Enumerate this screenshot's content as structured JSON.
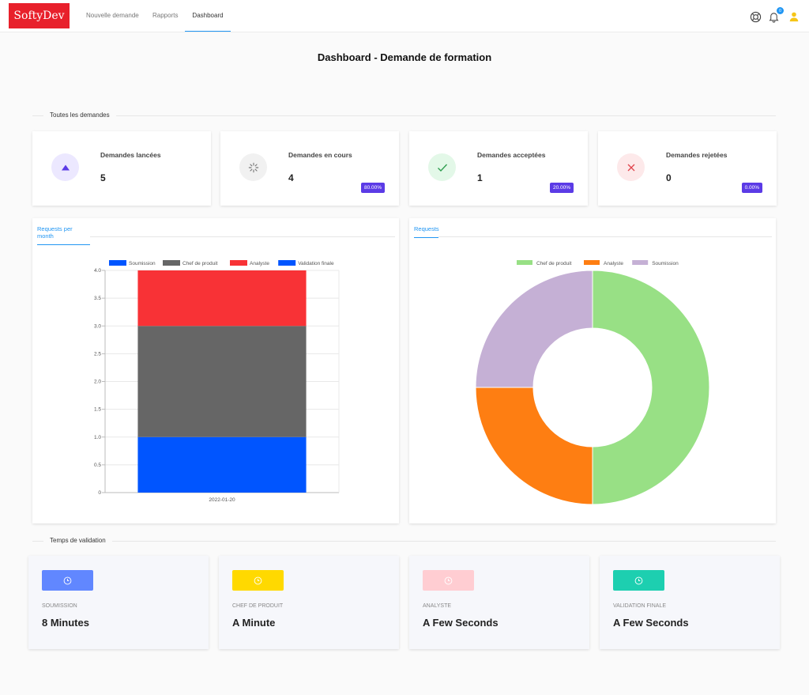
{
  "brand": "SoftyDev",
  "nav": {
    "items": [
      {
        "label": "Nouvelle demande",
        "active": false
      },
      {
        "label": "Rapports",
        "active": false
      },
      {
        "label": "Dashboard",
        "active": true
      }
    ]
  },
  "header_icons": {
    "help": "lifebuoy-icon",
    "notifications": "bell-icon",
    "notifications_count": "0",
    "user": "user-icon"
  },
  "page_title": "Dashboard - Demande de formation",
  "section_all": "Toutes les demandes",
  "stats": [
    {
      "title": "Demandes lancées",
      "value": "5",
      "pct": "",
      "icon": "triangle-up-icon",
      "color": "#5b3be6",
      "bg": "#ece8ff"
    },
    {
      "title": "Demandes en cours",
      "value": "4",
      "pct": "80.00%",
      "icon": "spinner-icon",
      "color": "#777777",
      "bg": "#f1f1f1"
    },
    {
      "title": "Demandes acceptées",
      "value": "1",
      "pct": "20.00%",
      "icon": "check-icon",
      "color": "#2f9e4f",
      "bg": "#e3f8e8"
    },
    {
      "title": "Demandes rejetées",
      "value": "0",
      "pct": "0.00%",
      "icon": "close-icon",
      "color": "#e0444c",
      "bg": "#fde9ea"
    }
  ],
  "bar_tab": "Requests per month",
  "donut_tab": "Requests",
  "chart_data": [
    {
      "type": "bar",
      "stacked": true,
      "categories": [
        "2022-01-20"
      ],
      "series": [
        {
          "name": "Soumission",
          "values": [
            1
          ],
          "color": "#0055ff"
        },
        {
          "name": "Chef de produit",
          "values": [
            2
          ],
          "color": "#666666"
        },
        {
          "name": "Analyste",
          "values": [
            1
          ],
          "color": "#f83236"
        },
        {
          "name": "Validation finale",
          "values": [
            0
          ],
          "color": "#0055ff"
        }
      ],
      "ylim": [
        0,
        4
      ],
      "yticks": [
        "0",
        "0.5",
        "1.0",
        "1.5",
        "2.0",
        "2.5",
        "3.0",
        "3.5",
        "4.0"
      ],
      "legend": "top",
      "grid": true
    },
    {
      "type": "pie",
      "donut": true,
      "labels": [
        "Chef de produit",
        "Analyste",
        "Soumission"
      ],
      "values": [
        2,
        1,
        1
      ],
      "colors": [
        "#98e085",
        "#fe7e12",
        "#c5b0d5"
      ],
      "legend": "top"
    }
  ],
  "section_time": "Temps de validation",
  "times": [
    {
      "label": "SOUMISSION",
      "value": "8 Minutes",
      "color": "#6187ff",
      "icon": "clock-icon"
    },
    {
      "label": "CHEF DE PRODUIT",
      "value": "A Minute",
      "color": "#ffd900",
      "icon": "clock-icon"
    },
    {
      "label": "ANALYSTE",
      "value": "A Few Seconds",
      "color": "#ffcdd2",
      "icon": "clock-icon"
    },
    {
      "label": "VALIDATION FINALE",
      "value": "A Few Seconds",
      "color": "#1dcfb0",
      "icon": "clock-icon"
    }
  ]
}
